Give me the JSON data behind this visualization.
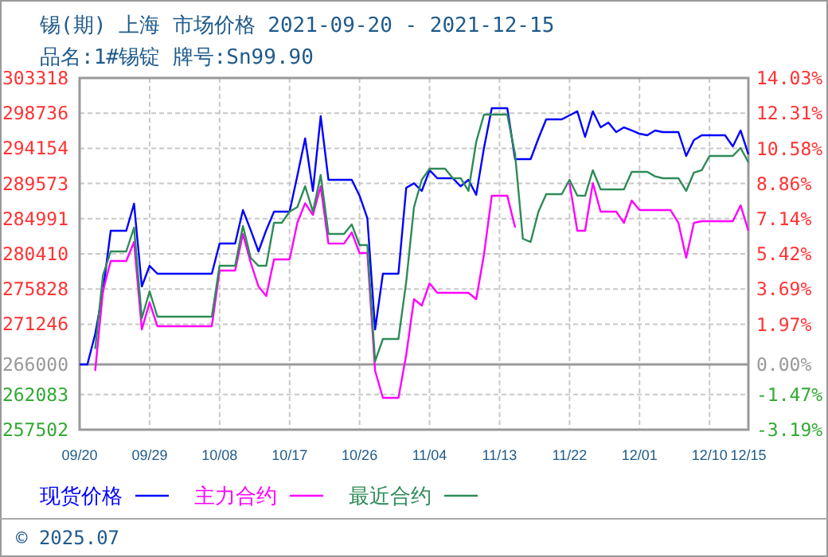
{
  "chart_data": {
    "type": "line",
    "title": "锡(期) 上海 市场价格 2021-09-20 - 2021-12-15",
    "subtitle": "品名:1#锡锭 牌号:Sn99.90",
    "x": [
      "2021-09-20",
      "2021-09-21",
      "2021-09-22",
      "2021-09-23",
      "2021-09-24",
      "2021-09-25",
      "2021-09-26",
      "2021-09-27",
      "2021-09-28",
      "2021-09-29",
      "2021-09-30",
      "2021-10-01",
      "2021-10-02",
      "2021-10-03",
      "2021-10-04",
      "2021-10-05",
      "2021-10-06",
      "2021-10-07",
      "2021-10-08",
      "2021-10-09",
      "2021-10-10",
      "2021-10-11",
      "2021-10-12",
      "2021-10-13",
      "2021-10-14",
      "2021-10-15",
      "2021-10-16",
      "2021-10-17",
      "2021-10-18",
      "2021-10-19",
      "2021-10-20",
      "2021-10-21",
      "2021-10-22",
      "2021-10-23",
      "2021-10-24",
      "2021-10-25",
      "2021-10-26",
      "2021-10-27",
      "2021-10-28",
      "2021-10-29",
      "2021-10-30",
      "2021-10-31",
      "2021-11-01",
      "2021-11-02",
      "2021-11-03",
      "2021-11-04",
      "2021-11-05",
      "2021-11-06",
      "2021-11-07",
      "2021-11-08",
      "2021-11-09",
      "2021-11-10",
      "2021-11-11",
      "2021-11-12",
      "2021-11-13",
      "2021-11-14",
      "2021-11-15",
      "2021-11-16",
      "2021-11-17",
      "2021-11-18",
      "2021-11-19",
      "2021-11-20",
      "2021-11-21",
      "2021-11-22",
      "2021-11-23",
      "2021-11-24",
      "2021-11-25",
      "2021-11-26",
      "2021-11-27",
      "2021-11-28",
      "2021-11-29",
      "2021-11-30",
      "2021-12-01",
      "2021-12-02",
      "2021-12-03",
      "2021-12-04",
      "2021-12-05",
      "2021-12-06",
      "2021-12-07",
      "2021-12-08",
      "2021-12-09",
      "2021-12-10",
      "2021-12-11",
      "2021-12-12",
      "2021-12-13",
      "2021-12-14",
      "2021-12-15"
    ],
    "series": [
      {
        "name": "现货价格",
        "color": "#0000ff",
        "values": [
          266000,
          266000,
          269940,
          275540,
          283415,
          283415,
          283415,
          286940,
          276160,
          278850,
          277820,
          277820,
          277820,
          277820,
          277820,
          277820,
          277820,
          277820,
          281760,
          281760,
          281760,
          286110,
          283500,
          280720,
          283500,
          285900,
          285900,
          285900,
          290600,
          295440,
          288600,
          298340,
          290050,
          290050,
          290050,
          290050,
          287980,
          285070,
          270560,
          277820,
          277820,
          277820,
          289010,
          289600,
          288600,
          291300,
          290260,
          290260,
          290260,
          289200,
          290050,
          288100,
          294200,
          299380,
          299380,
          299380,
          292740,
          292740,
          292740,
          295440,
          297930,
          297930,
          297930,
          298450,
          298970,
          295650,
          298970,
          296890,
          297520,
          296270,
          296890,
          296480,
          296060,
          295850,
          296480,
          296270,
          296270,
          296270,
          293160,
          295230,
          295850,
          295850,
          295850,
          295850,
          294400,
          296480,
          293370
        ]
      },
      {
        "name": "主力合约",
        "color": "#ff00ff",
        "values": [
          null,
          null,
          265170,
          275540,
          279480,
          279480,
          279480,
          281960,
          270560,
          274080,
          270980,
          270980,
          270980,
          270980,
          270980,
          270980,
          270980,
          270980,
          278230,
          278230,
          278230,
          283000,
          279270,
          276160,
          274920,
          279680,
          279680,
          279680,
          284450,
          287000,
          285480,
          289220,
          281750,
          281750,
          281750,
          283200,
          280510,
          280510,
          265170,
          261650,
          261650,
          261650,
          267250,
          274500,
          273670,
          276570,
          275330,
          275330,
          275330,
          275330,
          275330,
          274500,
          280300,
          287970,
          287970,
          287970,
          283830,
          null,
          null,
          null,
          null,
          null,
          null,
          289630,
          283415,
          283415,
          289630,
          285900,
          285900,
          285900,
          284450,
          287350,
          286110,
          286110,
          286110,
          286110,
          286110,
          284450,
          279890,
          284450,
          284660,
          284660,
          284660,
          284660,
          284660,
          286730,
          283415
        ]
      },
      {
        "name": "最近合约",
        "color": "#2e8b57",
        "values": [
          null,
          null,
          268000,
          277610,
          280720,
          280720,
          280720,
          283830,
          272010,
          275540,
          272220,
          272220,
          272220,
          272220,
          272220,
          272220,
          272220,
          272220,
          278850,
          278850,
          278850,
          284040,
          279890,
          278850,
          278850,
          284450,
          284450,
          285900,
          286500,
          289220,
          285900,
          290670,
          283000,
          283000,
          283000,
          284240,
          281550,
          281550,
          266420,
          269320,
          269320,
          269320,
          276780,
          286500,
          290050,
          291500,
          291500,
          291500,
          290260,
          290260,
          288600,
          295000,
          298550,
          298550,
          298550,
          298550,
          293370,
          282380,
          281960,
          285900,
          288180,
          288180,
          288180,
          290050,
          288000,
          287970,
          291300,
          288800,
          288800,
          288800,
          288800,
          291090,
          291090,
          291090,
          290500,
          290260,
          290260,
          290260,
          288600,
          291000,
          291300,
          293160,
          293160,
          293160,
          293160,
          294200,
          292330
        ]
      }
    ],
    "xlim": [
      "2021-09-20",
      "2021-12-15"
    ],
    "xticks": [
      {
        "value": "2021-09-20",
        "label": "09/20"
      },
      {
        "value": "2021-09-29",
        "label": "09/29"
      },
      {
        "value": "2021-10-08",
        "label": "10/08"
      },
      {
        "value": "2021-10-17",
        "label": "10/17"
      },
      {
        "value": "2021-10-26",
        "label": "10/26"
      },
      {
        "value": "2021-11-04",
        "label": "11/04"
      },
      {
        "value": "2021-11-13",
        "label": "11/13"
      },
      {
        "value": "2021-11-22",
        "label": "11/22"
      },
      {
        "value": "2021-12-01",
        "label": "12/01"
      },
      {
        "value": "2021-12-10",
        "label": "12/10"
      },
      {
        "value": "2021-12-15",
        "label": "12/15"
      }
    ],
    "ylim": [
      257502,
      303318
    ],
    "yticks": [
      257502,
      262083,
      266000,
      271246,
      275828,
      280410,
      284991,
      289573,
      294154,
      298736,
      303318
    ],
    "y2lim": [
      -3.19,
      14.03
    ],
    "y2ticks": [
      {
        "value": -3.19,
        "label": "-3.19%"
      },
      {
        "value": -1.47,
        "label": "-1.47%"
      },
      {
        "value": 0,
        "label": "0.00%"
      },
      {
        "value": 1.97,
        "label": "1.97%"
      },
      {
        "value": 3.69,
        "label": "3.69%"
      },
      {
        "value": 5.42,
        "label": "5.42%"
      },
      {
        "value": 7.14,
        "label": "7.14%"
      },
      {
        "value": 8.86,
        "label": "8.86%"
      },
      {
        "value": 10.58,
        "label": "10.58%"
      },
      {
        "value": 12.31,
        "label": "12.31%"
      },
      {
        "value": 14.03,
        "label": "14.03%"
      }
    ],
    "ref_lines": [
      {
        "axis": "y",
        "value": 266000,
        "color": "#999999"
      }
    ],
    "grid": true,
    "legend": "bottom",
    "annotations": [
      "© 2025.07"
    ]
  }
}
